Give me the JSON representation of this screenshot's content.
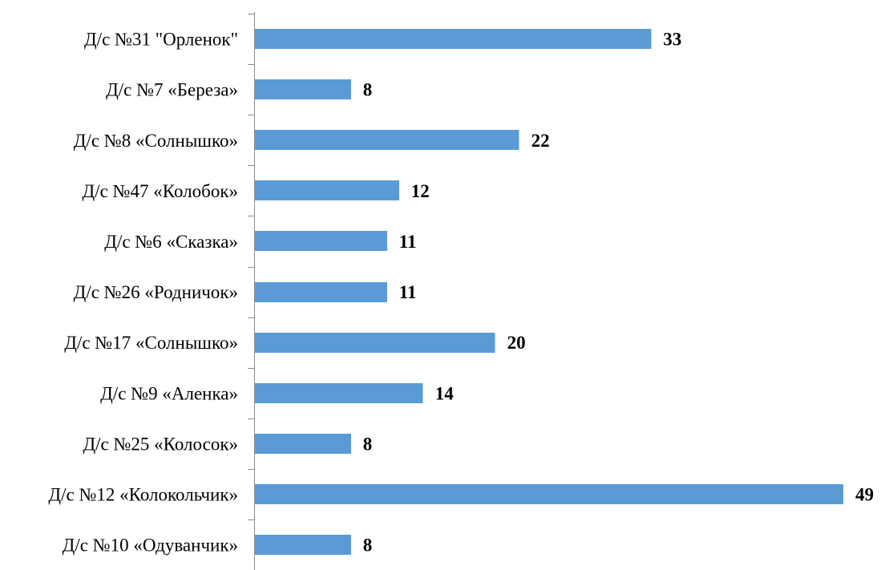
{
  "chart_data": {
    "type": "bar",
    "orientation": "horizontal",
    "categories": [
      "Д/с №31 \"Орленок\"",
      "Д/с №7 «Береза»",
      "Д/с №8 «Солнышко»",
      "Д/с №47 «Колобок»",
      "Д/с №6 «Сказка»",
      "Д/с №26 «Родничок»",
      "Д/с №17 «Солнышко»",
      "Д/с №9 «Аленка»",
      "Д/с №25 «Колосок»",
      "Д/с №12 «Колокольчик»",
      "Д/с №10 «Одуванчик»"
    ],
    "values": [
      33,
      8,
      22,
      12,
      11,
      11,
      20,
      14,
      8,
      49,
      8
    ],
    "title": "",
    "xlabel": "",
    "ylabel": "",
    "xlim": [
      0,
      49
    ],
    "data_labels": true,
    "grid": false,
    "legend": "none",
    "colors": {
      "bar": "#5b9bd5",
      "axis": "#8c8c8c",
      "text": "#000000"
    }
  }
}
